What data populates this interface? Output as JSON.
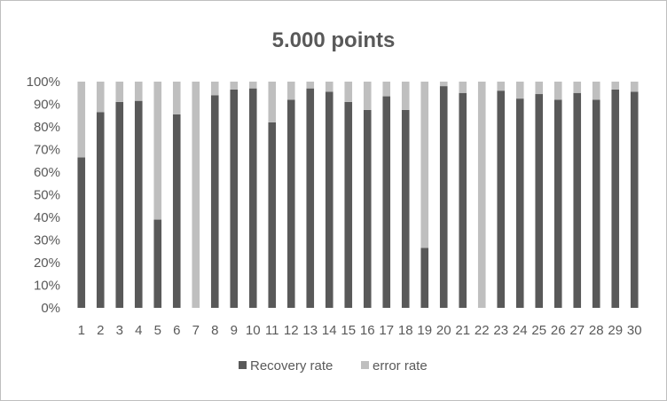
{
  "chart_data": {
    "type": "bar",
    "stacked": true,
    "normalized_percent": true,
    "title": "5.000 points",
    "xlabel": "",
    "ylabel": "",
    "ylim": [
      0,
      100
    ],
    "y_tick_labels": [
      "0%",
      "10%",
      "20%",
      "30%",
      "40%",
      "50%",
      "60%",
      "70%",
      "80%",
      "90%",
      "100%"
    ],
    "categories": [
      "1",
      "2",
      "3",
      "4",
      "5",
      "6",
      "7",
      "8",
      "9",
      "10",
      "11",
      "12",
      "13",
      "14",
      "15",
      "16",
      "17",
      "18",
      "19",
      "20",
      "21",
      "22",
      "23",
      "24",
      "25",
      "26",
      "27",
      "28",
      "29",
      "30"
    ],
    "series": [
      {
        "name": "Recovery rate",
        "color": "#595959",
        "values": [
          66.5,
          86.5,
          91,
          91.5,
          39,
          85.5,
          0,
          94,
          96.5,
          97,
          82,
          92,
          97,
          95.5,
          91,
          87.5,
          93.5,
          87.5,
          26.5,
          98,
          95,
          0,
          96,
          92.5,
          94.5,
          92,
          95,
          92,
          96.5,
          95.5
        ]
      },
      {
        "name": "error rate",
        "color": "#bfbfbf",
        "values": [
          33.5,
          13.5,
          9,
          8.5,
          61,
          14.5,
          100,
          6,
          3.5,
          3,
          18,
          8,
          3,
          4.5,
          9,
          12.5,
          6.5,
          12.5,
          73.5,
          2,
          5,
          100,
          4,
          7.5,
          5.5,
          8,
          5,
          8,
          3.5,
          4.5
        ]
      }
    ],
    "grid": false,
    "legend_position": "bottom"
  }
}
